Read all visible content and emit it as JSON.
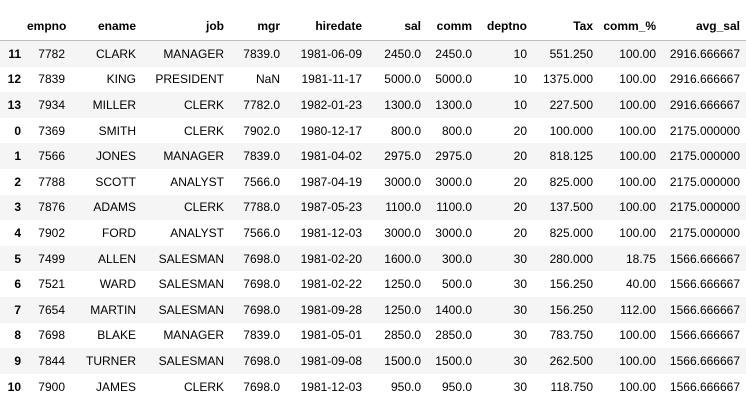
{
  "table": {
    "columns": [
      "",
      "empno",
      "ename",
      "job",
      "mgr",
      "hiredate",
      "sal",
      "comm",
      "deptno",
      "Tax",
      "comm_%",
      "avg_sal"
    ],
    "rows": [
      [
        "11",
        "7782",
        "CLARK",
        "MANAGER",
        "7839.0",
        "1981-06-09",
        "2450.0",
        "2450.0",
        "10",
        "551.250",
        "100.00",
        "2916.666667"
      ],
      [
        "12",
        "7839",
        "KING",
        "PRESIDENT",
        "NaN",
        "1981-11-17",
        "5000.0",
        "5000.0",
        "10",
        "1375.000",
        "100.00",
        "2916.666667"
      ],
      [
        "13",
        "7934",
        "MILLER",
        "CLERK",
        "7782.0",
        "1982-01-23",
        "1300.0",
        "1300.0",
        "10",
        "227.500",
        "100.00",
        "2916.666667"
      ],
      [
        "0",
        "7369",
        "SMITH",
        "CLERK",
        "7902.0",
        "1980-12-17",
        "800.0",
        "800.0",
        "20",
        "100.000",
        "100.00",
        "2175.000000"
      ],
      [
        "1",
        "7566",
        "JONES",
        "MANAGER",
        "7839.0",
        "1981-04-02",
        "2975.0",
        "2975.0",
        "20",
        "818.125",
        "100.00",
        "2175.000000"
      ],
      [
        "2",
        "7788",
        "SCOTT",
        "ANALYST",
        "7566.0",
        "1987-04-19",
        "3000.0",
        "3000.0",
        "20",
        "825.000",
        "100.00",
        "2175.000000"
      ],
      [
        "3",
        "7876",
        "ADAMS",
        "CLERK",
        "7788.0",
        "1987-05-23",
        "1100.0",
        "1100.0",
        "20",
        "137.500",
        "100.00",
        "2175.000000"
      ],
      [
        "4",
        "7902",
        "FORD",
        "ANALYST",
        "7566.0",
        "1981-12-03",
        "3000.0",
        "3000.0",
        "20",
        "825.000",
        "100.00",
        "2175.000000"
      ],
      [
        "5",
        "7499",
        "ALLEN",
        "SALESMAN",
        "7698.0",
        "1981-02-20",
        "1600.0",
        "300.0",
        "30",
        "280.000",
        "18.75",
        "1566.666667"
      ],
      [
        "6",
        "7521",
        "WARD",
        "SALESMAN",
        "7698.0",
        "1981-02-22",
        "1250.0",
        "500.0",
        "30",
        "156.250",
        "40.00",
        "1566.666667"
      ],
      [
        "7",
        "7654",
        "MARTIN",
        "SALESMAN",
        "7698.0",
        "1981-09-28",
        "1250.0",
        "1400.0",
        "30",
        "156.250",
        "112.00",
        "1566.666667"
      ],
      [
        "8",
        "7698",
        "BLAKE",
        "MANAGER",
        "7839.0",
        "1981-05-01",
        "2850.0",
        "2850.0",
        "30",
        "783.750",
        "100.00",
        "1566.666667"
      ],
      [
        "9",
        "7844",
        "TURNER",
        "SALESMAN",
        "7698.0",
        "1981-09-08",
        "1500.0",
        "1500.0",
        "30",
        "262.500",
        "100.00",
        "1566.666667"
      ],
      [
        "10",
        "7900",
        "JAMES",
        "CLERK",
        "7698.0",
        "1981-12-03",
        "950.0",
        "950.0",
        "30",
        "118.750",
        "100.00",
        "1566.666667"
      ]
    ]
  }
}
